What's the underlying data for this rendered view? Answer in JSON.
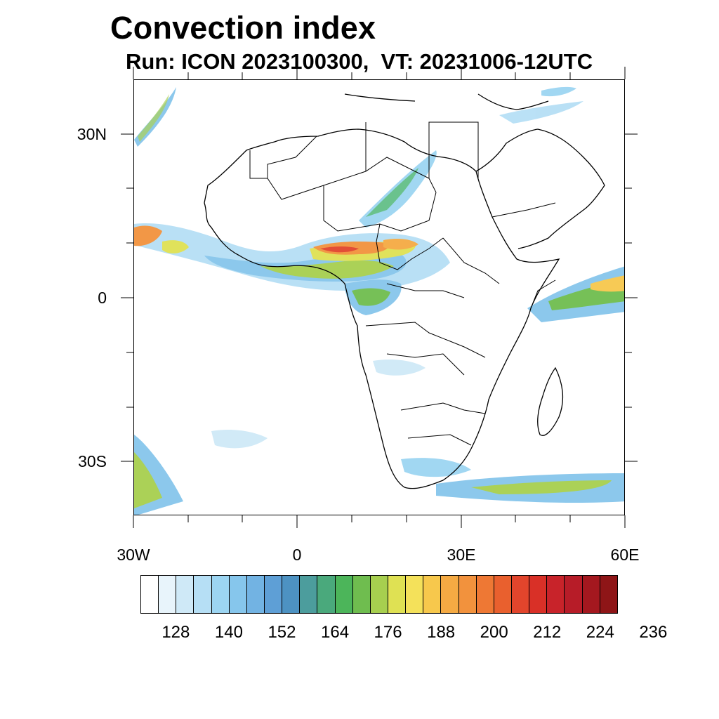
{
  "title": "Convection index",
  "subtitle": "Run: ICON 2023100300,  VT: 20231006-12UTC",
  "map": {
    "lat_labels": [
      "30N",
      "0",
      "30S"
    ],
    "lon_labels": [
      "30W",
      "0",
      "30E",
      "60E"
    ],
    "extent": {
      "lon": [
        -30,
        60
      ],
      "lat": [
        -40,
        40
      ]
    },
    "coastline_color": "#000000"
  },
  "colorbar": {
    "colors": [
      "#ffffff",
      "#e8f4fb",
      "#cfe9f7",
      "#b6dff5",
      "#9cd5f2",
      "#86c6ec",
      "#72b3e3",
      "#5e9fd6",
      "#4d92c2",
      "#4c9d9d",
      "#4aa97c",
      "#4cb55a",
      "#6fbd4f",
      "#a7cf4f",
      "#dfe153",
      "#f4e15a",
      "#f7c84c",
      "#f5aa43",
      "#f2923d",
      "#ee7834",
      "#e9602e",
      "#e2452c",
      "#d93027",
      "#c8232a",
      "#b71c28",
      "#a4181f",
      "#8e1517"
    ],
    "labels": [
      "128",
      "140",
      "152",
      "164",
      "176",
      "188",
      "200",
      "212",
      "224",
      "236"
    ]
  }
}
